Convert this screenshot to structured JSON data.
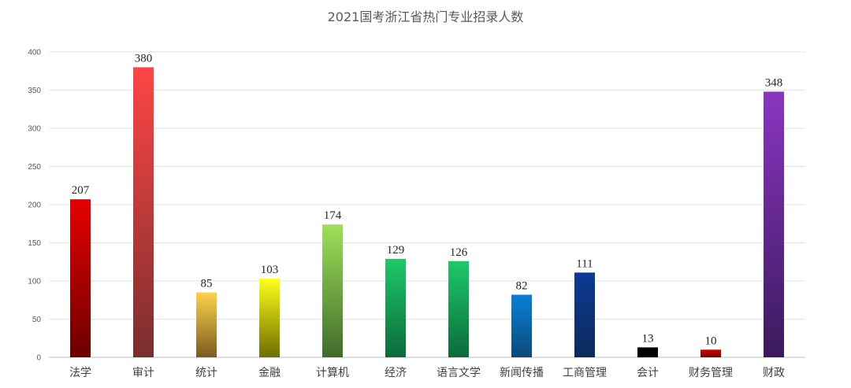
{
  "chart_data": {
    "type": "bar",
    "title": "2021国考浙江省热门专业招录人数",
    "xlabel": "",
    "ylabel": "",
    "ylim": [
      0,
      400
    ],
    "yticks": [
      0,
      50,
      100,
      150,
      200,
      250,
      300,
      350,
      400
    ],
    "grid": true,
    "legend": "none",
    "categories": [
      "法学",
      "审计",
      "统计",
      "金融",
      "计算机",
      "经济",
      "语言文学",
      "新闻传播",
      "工商管理",
      "会计",
      "财务管理",
      "财政"
    ],
    "values": [
      207,
      380,
      85,
      103,
      174,
      129,
      126,
      82,
      111,
      13,
      10,
      348
    ],
    "bar_colors": [
      [
        "#e60000",
        "#6b0000"
      ],
      [
        "#ff4545",
        "#7a2e2e"
      ],
      [
        "#ffd24d",
        "#7a5c1e"
      ],
      [
        "#ffff1a",
        "#6e6e00"
      ],
      [
        "#9fe05a",
        "#3f6b2a"
      ],
      [
        "#1ec86a",
        "#0b6b3a"
      ],
      [
        "#1ec86a",
        "#0b6b3a"
      ],
      [
        "#0a7fd6",
        "#0b4a7a"
      ],
      [
        "#0c3a94",
        "#0c2a5a"
      ],
      [
        "#000000",
        "#000000"
      ],
      [
        "#cc0000",
        "#7a0000"
      ],
      [
        "#8a35c0",
        "#3a1a5c"
      ]
    ]
  }
}
